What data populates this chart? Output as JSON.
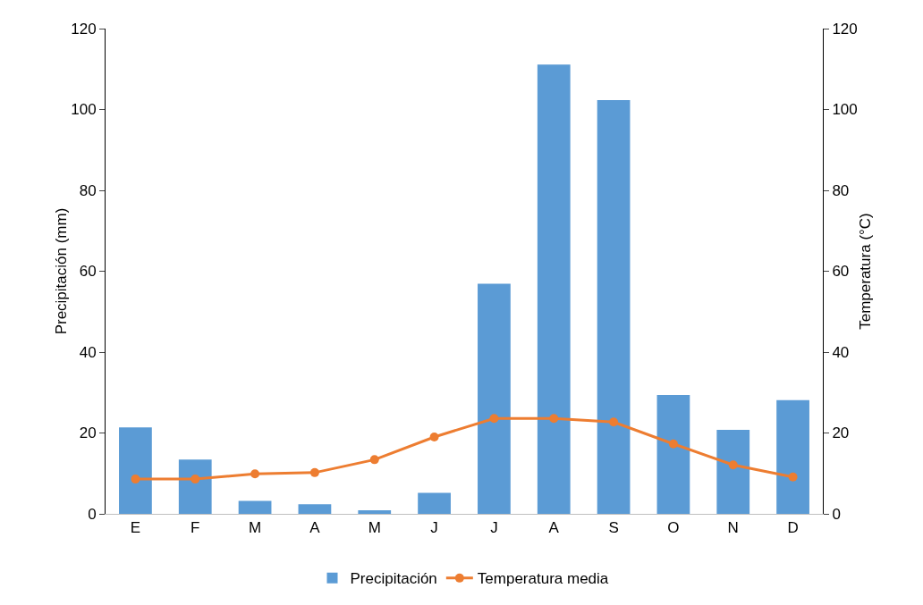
{
  "chart_data": {
    "type": "bar",
    "categories": [
      "E",
      "F",
      "M",
      "A",
      "M",
      "J",
      "J",
      "A",
      "S",
      "O",
      "N",
      "D"
    ],
    "series": [
      {
        "name": "Precipitación",
        "color": "#5b9bd5",
        "values": [
          21.4,
          13.4,
          3.2,
          2.4,
          0.9,
          5.2,
          56.9,
          111.1,
          102.3,
          29.4,
          20.8,
          28.1
        ]
      },
      {
        "name": "Temperatura media",
        "type": "line",
        "axis": "y2",
        "color": "#ed7d31",
        "marker": "circle",
        "values": [
          8.6,
          8.6,
          9.9,
          10.2,
          13.4,
          19.0,
          23.6,
          23.6,
          22.7,
          17.3,
          12.1,
          9.1
        ]
      }
    ],
    "ylabel": "Precipitación (mm)",
    "y2label": "Temperatura (°C)",
    "ylim": [
      0,
      120
    ],
    "yticks": [
      0,
      20,
      40,
      60,
      80,
      100,
      120
    ],
    "y2lim": [
      0,
      120
    ],
    "y2ticks": [
      0,
      20,
      40,
      60,
      80,
      100,
      120
    ],
    "grid": false,
    "legend": "bottom"
  }
}
